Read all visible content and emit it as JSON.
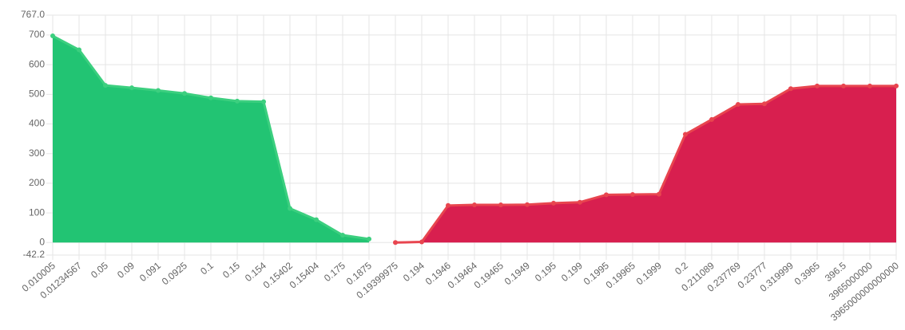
{
  "chart_data": {
    "type": "area",
    "categories": [
      "0.010005",
      "0.01234567",
      "0.05",
      "0.09",
      "0.091",
      "0.0925",
      "0.1",
      "0.15",
      "0.154",
      "0.15402",
      "0.15404",
      "0.175",
      "0.1875",
      "0.19399975",
      "0.194",
      "0.1946",
      "0.19464",
      "0.19465",
      "0.1949",
      "0.195",
      "0.199",
      "0.1995",
      "0.19965",
      "0.1999",
      "0.2",
      "0.211089",
      "0.237769",
      "0.23777",
      "0.319999",
      "0.3965",
      "396.5",
      "3965000000",
      "3965000000000000"
    ],
    "series": [
      {
        "color": "#22c473",
        "line_color": "#3ccf7f",
        "values": [
          697,
          650,
          530,
          522,
          513,
          503,
          488,
          477,
          475,
          115,
          77,
          25,
          12,
          null,
          null,
          null,
          null,
          null,
          null,
          null,
          null,
          null,
          null,
          null,
          null,
          null,
          null,
          null,
          null,
          null,
          null,
          null,
          null
        ]
      },
      {
        "color": "#d81f4f",
        "line_color": "#e8454f",
        "values": [
          null,
          null,
          null,
          null,
          null,
          null,
          null,
          null,
          null,
          null,
          null,
          null,
          null,
          0,
          2,
          125,
          127,
          127,
          128,
          133,
          136,
          161,
          162,
          163,
          365,
          415,
          466,
          468,
          519,
          528,
          528,
          528,
          528
        ]
      }
    ],
    "ylim": [
      -42.2,
      767.0
    ],
    "yticks": [
      {
        "value": -42.2,
        "label": "-42.2"
      },
      0,
      100,
      200,
      300,
      400,
      500,
      600,
      700,
      {
        "value": 767.0,
        "label": "767.0"
      }
    ],
    "grid": true
  }
}
